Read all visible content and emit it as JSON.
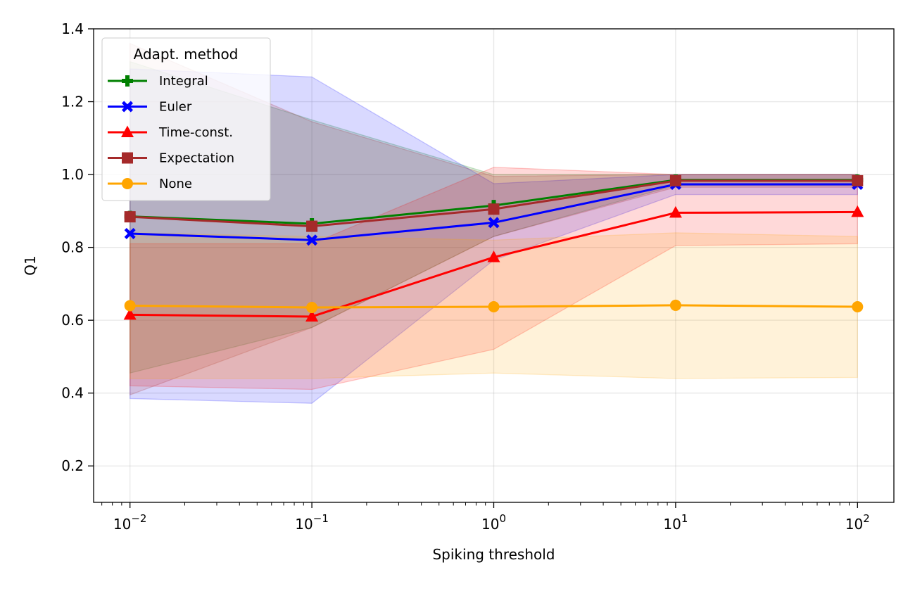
{
  "chart_data": {
    "type": "line",
    "title": "",
    "xlabel": "Spiking threshold",
    "ylabel": "Q1",
    "xscale": "log",
    "x": [
      0.01,
      0.1,
      1,
      10,
      100
    ],
    "x_tick_labels": [
      {
        "base": "10",
        "exp": "−2"
      },
      {
        "base": "10",
        "exp": "−1"
      },
      {
        "base": "10",
        "exp": "0"
      },
      {
        "base": "10",
        "exp": "1"
      },
      {
        "base": "10",
        "exp": "2"
      }
    ],
    "xlim_log10": [
      -2.2,
      2.2
    ],
    "ylim": [
      0.1,
      1.4
    ],
    "y_ticks": [
      0.2,
      0.4,
      0.6,
      0.8,
      1.0,
      1.2,
      1.4
    ],
    "y_tick_labels": [
      "0.2",
      "0.4",
      "0.6",
      "0.8",
      "1.0",
      "1.2",
      "1.4"
    ],
    "grid": true,
    "legend": {
      "title": "Adapt. method",
      "position": "top-left"
    },
    "series": [
      {
        "name": "Integral",
        "color": "#008000",
        "marker": "plus",
        "values": [
          0.885,
          0.865,
          0.915,
          0.985,
          0.985
        ],
        "band_lower": [
          0.455,
          0.58,
          0.83,
          0.97,
          0.97
        ],
        "band_upper": [
          1.31,
          1.15,
          1.0,
          1.0,
          1.0
        ]
      },
      {
        "name": "Euler",
        "color": "#0000ff",
        "marker": "x-filled",
        "values": [
          0.838,
          0.82,
          0.868,
          0.973,
          0.973
        ],
        "band_lower": [
          0.385,
          0.372,
          0.765,
          0.945,
          0.945
        ],
        "band_upper": [
          1.29,
          1.268,
          0.975,
          1.0,
          1.0
        ]
      },
      {
        "name": "Time-const.",
        "color": "#ff0000",
        "marker": "triangle",
        "values": [
          0.615,
          0.61,
          0.773,
          0.895,
          0.897
        ],
        "band_lower": [
          0.42,
          0.41,
          0.52,
          0.805,
          0.81
        ],
        "band_upper": [
          0.81,
          0.81,
          1.02,
          1.0,
          1.0
        ]
      },
      {
        "name": "Expectation",
        "color": "#a52a2a",
        "marker": "square",
        "values": [
          0.884,
          0.858,
          0.905,
          0.983,
          0.983
        ],
        "band_lower": [
          0.395,
          0.58,
          0.83,
          0.965,
          0.965
        ],
        "band_upper": [
          1.36,
          1.145,
          0.995,
          1.0,
          1.0
        ]
      },
      {
        "name": "None",
        "color": "#ffa500",
        "marker": "circle",
        "values": [
          0.64,
          0.635,
          0.637,
          0.641,
          0.637
        ],
        "band_lower": [
          0.44,
          0.44,
          0.455,
          0.44,
          0.443
        ],
        "band_upper": [
          0.84,
          0.83,
          0.82,
          0.84,
          0.83
        ]
      }
    ]
  }
}
